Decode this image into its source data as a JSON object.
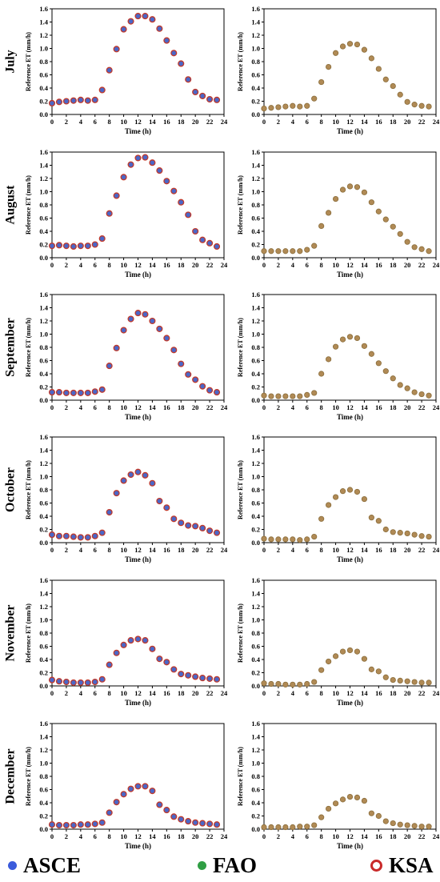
{
  "chart_data": {
    "type": "scatter",
    "x": [
      0,
      1,
      2,
      3,
      4,
      5,
      6,
      7,
      8,
      9,
      10,
      11,
      12,
      13,
      14,
      15,
      16,
      17,
      18,
      19,
      20,
      21,
      22,
      23
    ],
    "xlim": [
      0,
      24
    ],
    "ylim": [
      0,
      1.6
    ],
    "xticks": [
      "0",
      "2",
      "4",
      "6",
      "8",
      "10",
      "12",
      "14",
      "16",
      "18",
      "20",
      "22",
      "24"
    ],
    "yticks": [
      "0.0",
      "0.2",
      "0.4",
      "0.6",
      "0.8",
      "1.0",
      "1.2",
      "1.4",
      "1.6"
    ],
    "xlabel": "Time (h)",
    "ylabel": "Reference ET (mm/h)",
    "legend": {
      "position": "bottom",
      "entries": [
        {
          "name": "ASCE",
          "color": "#3b5bdb",
          "style": "filled"
        },
        {
          "name": "FAO",
          "color": "#2f9e44",
          "style": "filled"
        },
        {
          "name": "KSA",
          "color": "#c92a2a",
          "style": "hollow"
        }
      ]
    },
    "marker_colors": {
      "ASCE_fill": "#4a67c8",
      "ASCE_ring": "#c0392b",
      "FAO_fill": "#b08a55",
      "FAO_ring": "#8a6d3b"
    },
    "rows": [
      {
        "month": "July",
        "left": [
          0.17,
          0.19,
          0.2,
          0.21,
          0.22,
          0.21,
          0.22,
          0.37,
          0.67,
          0.99,
          1.29,
          1.41,
          1.49,
          1.49,
          1.44,
          1.3,
          1.12,
          0.93,
          0.77,
          0.53,
          0.34,
          0.28,
          0.23,
          0.22
        ],
        "right": [
          0.09,
          0.1,
          0.11,
          0.12,
          0.13,
          0.12,
          0.13,
          0.24,
          0.49,
          0.72,
          0.93,
          1.03,
          1.07,
          1.06,
          0.98,
          0.85,
          0.69,
          0.53,
          0.43,
          0.3,
          0.19,
          0.15,
          0.13,
          0.12
        ]
      },
      {
        "month": "August",
        "left": [
          0.18,
          0.19,
          0.18,
          0.17,
          0.18,
          0.18,
          0.2,
          0.29,
          0.67,
          0.94,
          1.22,
          1.41,
          1.51,
          1.52,
          1.44,
          1.32,
          1.16,
          1.01,
          0.84,
          0.65,
          0.4,
          0.27,
          0.22,
          0.17
        ],
        "right": [
          0.1,
          0.1,
          0.1,
          0.1,
          0.1,
          0.1,
          0.12,
          0.18,
          0.48,
          0.68,
          0.89,
          1.03,
          1.08,
          1.07,
          0.99,
          0.84,
          0.7,
          0.58,
          0.47,
          0.36,
          0.24,
          0.16,
          0.13,
          0.1
        ]
      },
      {
        "month": "September",
        "left": [
          0.12,
          0.12,
          0.11,
          0.11,
          0.11,
          0.11,
          0.13,
          0.16,
          0.52,
          0.79,
          1.06,
          1.23,
          1.32,
          1.3,
          1.2,
          1.08,
          0.94,
          0.76,
          0.55,
          0.39,
          0.31,
          0.21,
          0.15,
          0.12
        ],
        "right": [
          0.07,
          0.06,
          0.06,
          0.06,
          0.06,
          0.06,
          0.08,
          0.11,
          0.4,
          0.62,
          0.81,
          0.92,
          0.96,
          0.94,
          0.82,
          0.7,
          0.56,
          0.44,
          0.33,
          0.23,
          0.18,
          0.12,
          0.09,
          0.07
        ]
      },
      {
        "month": "October",
        "left": [
          0.12,
          0.1,
          0.1,
          0.09,
          0.08,
          0.08,
          0.1,
          0.15,
          0.46,
          0.75,
          0.94,
          1.03,
          1.07,
          1.02,
          0.9,
          0.63,
          0.53,
          0.36,
          0.3,
          0.26,
          0.25,
          0.22,
          0.18,
          0.15
        ],
        "right": [
          0.06,
          0.05,
          0.05,
          0.05,
          0.05,
          0.04,
          0.05,
          0.09,
          0.36,
          0.57,
          0.69,
          0.78,
          0.8,
          0.77,
          0.66,
          0.38,
          0.33,
          0.2,
          0.16,
          0.15,
          0.14,
          0.12,
          0.1,
          0.09
        ]
      },
      {
        "month": "November",
        "left": [
          0.09,
          0.07,
          0.06,
          0.05,
          0.05,
          0.05,
          0.06,
          0.1,
          0.32,
          0.5,
          0.62,
          0.69,
          0.71,
          0.69,
          0.56,
          0.41,
          0.36,
          0.25,
          0.18,
          0.16,
          0.14,
          0.12,
          0.11,
          0.1
        ],
        "right": [
          0.04,
          0.03,
          0.03,
          0.02,
          0.02,
          0.02,
          0.03,
          0.06,
          0.24,
          0.37,
          0.45,
          0.52,
          0.54,
          0.52,
          0.41,
          0.25,
          0.22,
          0.13,
          0.09,
          0.08,
          0.07,
          0.06,
          0.05,
          0.05
        ]
      },
      {
        "month": "December",
        "left": [
          0.07,
          0.06,
          0.06,
          0.06,
          0.07,
          0.07,
          0.08,
          0.1,
          0.25,
          0.41,
          0.53,
          0.61,
          0.65,
          0.65,
          0.58,
          0.37,
          0.29,
          0.19,
          0.15,
          0.12,
          0.1,
          0.09,
          0.08,
          0.07
        ],
        "right": [
          0.03,
          0.03,
          0.03,
          0.03,
          0.03,
          0.04,
          0.04,
          0.06,
          0.18,
          0.31,
          0.39,
          0.45,
          0.49,
          0.48,
          0.43,
          0.24,
          0.2,
          0.12,
          0.09,
          0.07,
          0.06,
          0.05,
          0.04,
          0.04
        ]
      }
    ]
  }
}
